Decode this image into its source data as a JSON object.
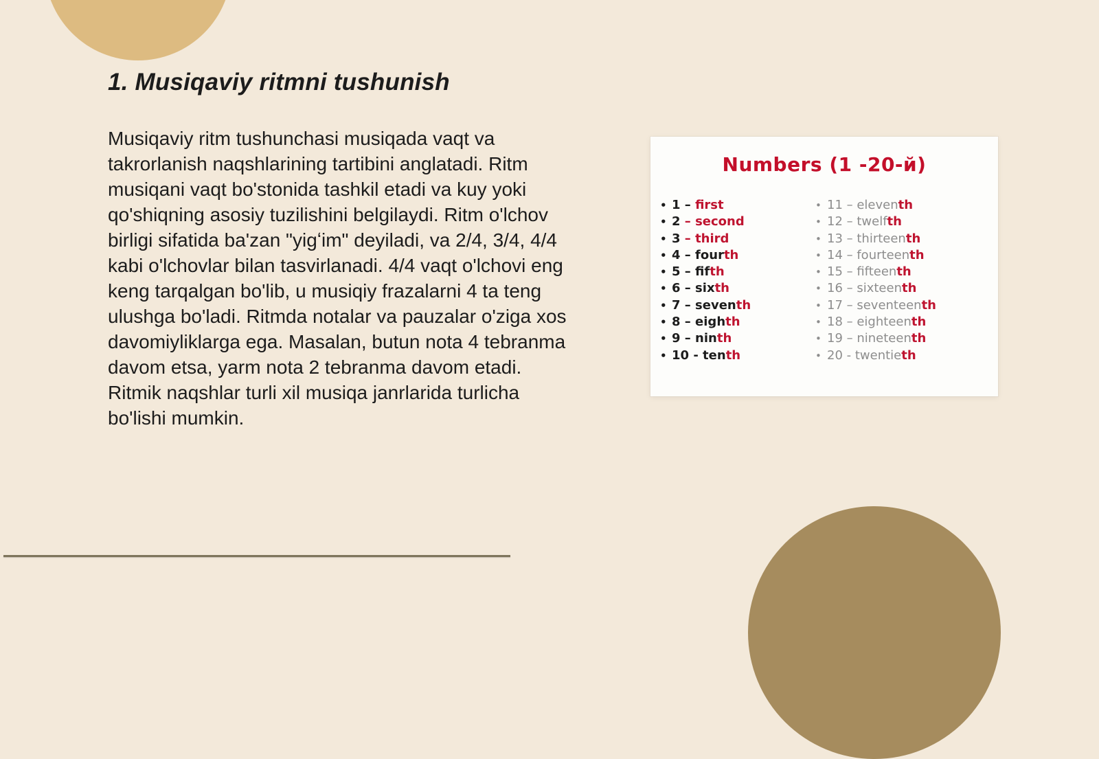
{
  "colors": {
    "background": "#f3e9da",
    "circle_top": "#ddbb81",
    "circle_bottom": "#a68c5e",
    "card_bg": "#fdfdfb",
    "heading_red": "#c30f2a",
    "accent_red": "#bf1430",
    "text_dark": "#1c1c1c",
    "muted_gray": "#8d8d8d",
    "divider": "#7e755c"
  },
  "slide": {
    "title": "1. Musiqaviy ritmni tushunish",
    "body": "Musiqaviy ritm tushunchasi musiqada vaqt va takrorlanish naqshlarining tartibini anglatadi. Ritm musiqani vaqt bo'stonida tashkil etadi va kuy yoki qo'shiqning asosiy tuzilishini belgilaydi. Ritm o'lchov birligi sifatida ba'zan \"yigʻim\" deyiladi, va 2/4, 3/4, 4/4 kabi o'lchovlar bilan tasvirlanadi. 4/4 vaqt o'lchovi eng keng tarqalgan bo'lib, u musiqiy frazalarni 4 ta teng ulushga bo'ladi. Ritmda notalar va pauzalar o'ziga xos davomiyliklarga ega. Masalan, butun nota 4 tebranma davom etsa, yarm nota 2 tebranma davom etadi. Ritmik naqshlar turli xil musiqa janrlarida turlicha bo'lishi mumkin."
  },
  "numbers_card": {
    "title": "Numbers (1 -20-й)",
    "bullet": "•",
    "left_items": [
      {
        "base": "1 – ",
        "red": "first"
      },
      {
        "base": "2 ",
        "red": "– second"
      },
      {
        "base": "3 ",
        "red": "– third"
      },
      {
        "base": "4 – four",
        "red": "th"
      },
      {
        "base": "5 – fif",
        "red": "th"
      },
      {
        "base": "6 – six",
        "red": "th"
      },
      {
        "base": "7 – seven",
        "red": "th"
      },
      {
        "base": "8 – eigh",
        "red": "th"
      },
      {
        "base": "9 – nin",
        "red": "th"
      },
      {
        "base": "10 - ten",
        "red": "th"
      }
    ],
    "right_items": [
      {
        "base": "11 – eleven",
        "red": "th"
      },
      {
        "base": "12 – twelf",
        "red": "th"
      },
      {
        "base": "13 – thirteen",
        "red": "th"
      },
      {
        "base": "14 – fourteen",
        "red": "th"
      },
      {
        "base": "15 – fifteen",
        "red": "th"
      },
      {
        "base": "16 – sixteen",
        "red": "th"
      },
      {
        "base": "17 – seventeen",
        "red": "th"
      },
      {
        "base": "18 – eighteen",
        "red": "th"
      },
      {
        "base": "19 – nineteen",
        "red": "th"
      },
      {
        "base": "20 - twentie",
        "red": "th"
      }
    ]
  }
}
